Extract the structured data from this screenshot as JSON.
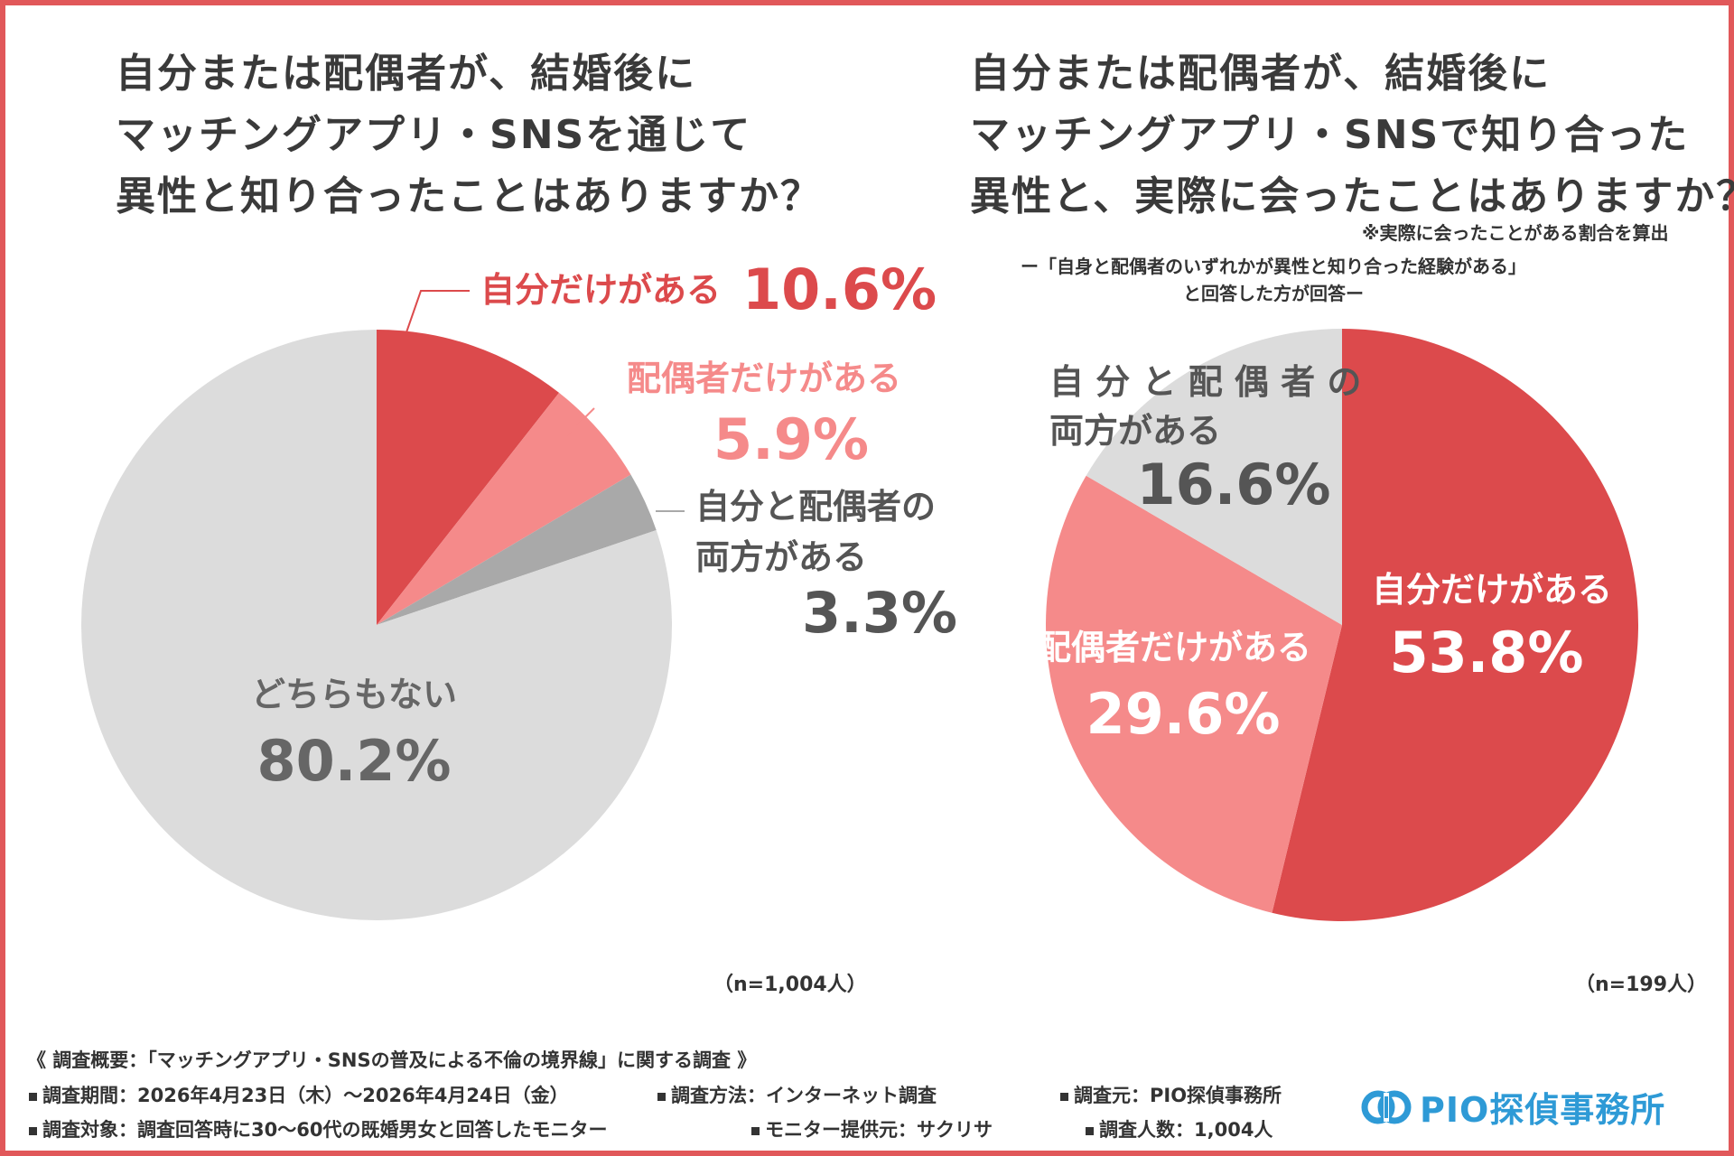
{
  "frame_color": "#e1585a",
  "left": {
    "title_lines": [
      "自分または配偶者が、結婚後に",
      "マッチングアプリ・SNSを通じて",
      "異性と知り合ったことはありますか？"
    ],
    "n_label": "（n=1,004人）"
  },
  "right": {
    "title_lines": [
      "自分または配偶者が、結婚後に",
      "マッチングアプリ・SNSで知り合った",
      "異性と、実際に会ったことはありますか？"
    ],
    "note": "※実際に会ったことがある割合を算出",
    "subtitle_lines": [
      "ー「自身と配偶者のいずれかが異性と知り合った経験がある」",
      "と回答した方が回答ー"
    ],
    "n_label": "（n=199人）"
  },
  "chart_data": [
    {
      "type": "pie",
      "title": "自分または配偶者が、結婚後にマッチングアプリ・SNSを通じて異性と知り合ったことはありますか？",
      "slices": [
        {
          "label": "自分だけがある",
          "value": 10.6,
          "display": "10.6%",
          "color": "#dc4a4c"
        },
        {
          "label": "配偶者だけがある",
          "value": 5.9,
          "display": "5.9%",
          "color": "#f58a8a"
        },
        {
          "label": "自分と配偶者の両方がある",
          "label_lines": [
            "自分と配偶者の",
            "両方がある"
          ],
          "value": 3.3,
          "display": "3.3%",
          "color": "#a9a9a9"
        },
        {
          "label": "どちらもない",
          "value": 80.2,
          "display": "80.2%",
          "color": "#dcdcdc"
        }
      ],
      "start_angle": "12 o'clock, clockwise"
    },
    {
      "type": "pie",
      "title": "自分または配偶者が、結婚後にマッチングアプリ・SNSで知り合った異性と、実際に会ったことはありますか？",
      "slices": [
        {
          "label": "自分だけがある",
          "value": 53.8,
          "display": "53.8%",
          "color": "#dc4a4c"
        },
        {
          "label": "配偶者だけがある",
          "value": 29.6,
          "display": "29.6%",
          "color": "#f58a8a"
        },
        {
          "label": "自分と配偶者の両方がある",
          "label_lines": [
            "自 分 と 配 偶 者 の",
            "両方がある"
          ],
          "value": 16.6,
          "display": "16.6%",
          "color": "#dcdcdc"
        }
      ],
      "start_angle": "12 o'clock, clockwise"
    }
  ],
  "footer": {
    "header": "《 調査概要：「マッチングアプリ・SNSの普及による不倫の境界線」に関する調査 》",
    "items": [
      "調査期間：2026年4月23日（木）～2026年4月24日（金）",
      "調査方法：インターネット調査",
      "調査元：PIO探偵事務所",
      "調査対象：調査回答時に30～60代の既婚男女と回答したモニター",
      "モニター提供元：サクリサ",
      "調査人数：1,004人"
    ]
  },
  "logo": {
    "text": "PIO探偵事務所",
    "color": "#2e9ad6"
  }
}
